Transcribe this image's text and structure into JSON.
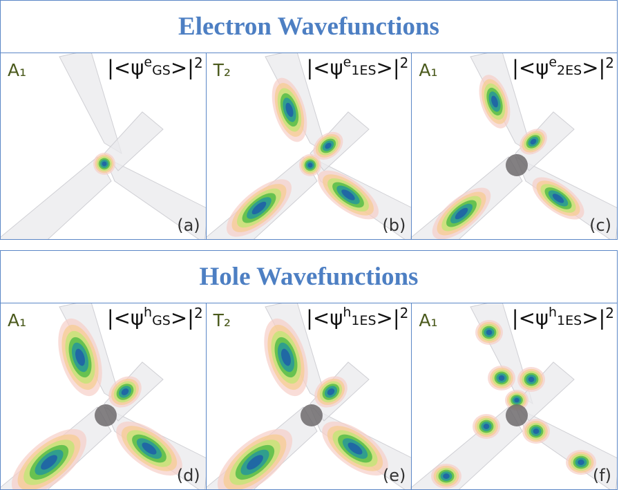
{
  "sections": [
    {
      "title": "Electron Wavefunctions",
      "panels": [
        {
          "symmetry": "A₁",
          "formula": {
            "open": "|<ψ",
            "particle": "e",
            "state": "GS",
            "close": ">|",
            "power": "2"
          },
          "letter": "(a)"
        },
        {
          "symmetry": "T₂",
          "formula": {
            "open": "|<ψ",
            "particle": "e",
            "state": "1ES",
            "close": ">|",
            "power": "2"
          },
          "letter": "(b)"
        },
        {
          "symmetry": "A₁",
          "formula": {
            "open": "|<ψ",
            "particle": "e",
            "state": "2ES",
            "close": ">|",
            "power": "2"
          },
          "letter": "(c)"
        }
      ]
    },
    {
      "title": "Hole Wavefunctions",
      "panels": [
        {
          "symmetry": "A₁",
          "formula": {
            "open": "|<ψ",
            "particle": "h",
            "state": "GS",
            "close": ">|",
            "power": "2"
          },
          "letter": "(d)"
        },
        {
          "symmetry": "T₂",
          "formula": {
            "open": "|<ψ",
            "particle": "h",
            "state": "1ES",
            "close": ">|",
            "power": "2"
          },
          "letter": "(e)"
        },
        {
          "symmetry": "A₁",
          "formula": {
            "open": "|<ψ",
            "particle": "h",
            "state": "1ES",
            "close": ">|",
            "power": "2"
          },
          "letter": "(f)"
        }
      ]
    }
  ]
}
